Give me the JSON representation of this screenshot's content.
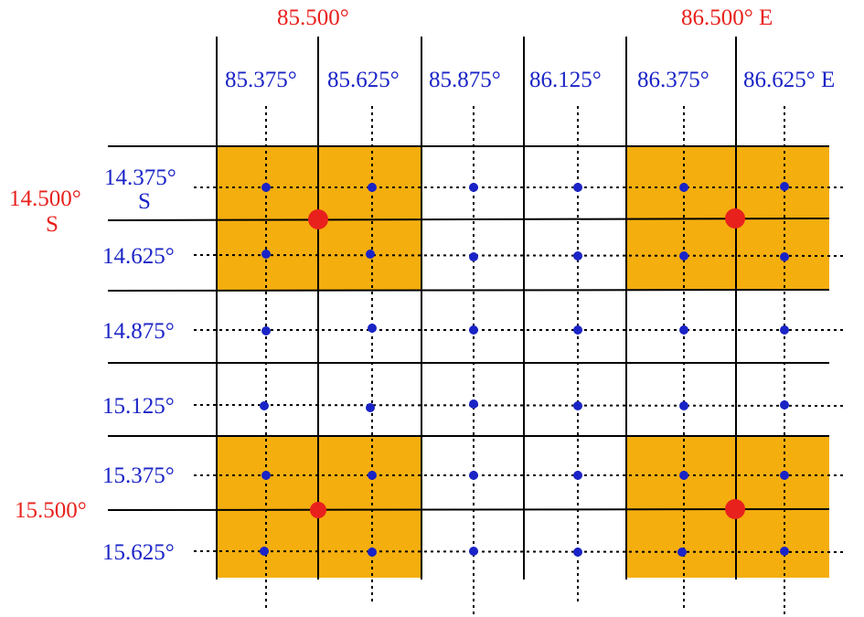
{
  "colors": {
    "cell_fill": "#f4ae0e",
    "solid_line": "#000000",
    "dotted_line": "#000000",
    "fine_point": "#1a24c6",
    "coarse_point": "#e8211d",
    "fine_label": "#1a24c6",
    "coarse_label": "#e8211d"
  },
  "coarse_lon_labels": [
    "85.500°",
    "86.500° E"
  ],
  "fine_lon_labels": [
    "85.375°",
    "85.625°",
    "85.875°",
    "86.125°",
    "86.375°",
    "86.625° E"
  ],
  "coarse_lat_labels": [
    {
      "line1": "14.500°",
      "line2": "S"
    },
    {
      "line1": "15.500°",
      "line2": ""
    }
  ],
  "fine_lat_labels": [
    {
      "line1": "14.375°",
      "line2": "S"
    },
    {
      "line1": "14.625°",
      "line2": ""
    },
    {
      "line1": "14.875°",
      "line2": ""
    },
    {
      "line1": "15.125°",
      "line2": ""
    },
    {
      "line1": "15.375°",
      "line2": ""
    },
    {
      "line1": "15.625°",
      "line2": ""
    }
  ],
  "highlighted_blocks": [
    {
      "lon": "85.500°",
      "lat": "14.500°"
    },
    {
      "lon": "86.500°",
      "lat": "14.500°"
    },
    {
      "lon": "85.500°",
      "lat": "15.500°"
    },
    {
      "lon": "86.500°",
      "lat": "15.500°"
    }
  ]
}
